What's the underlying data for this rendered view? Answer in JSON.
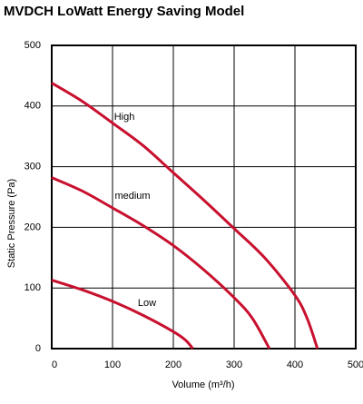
{
  "chart_data": {
    "type": "line",
    "title": "MVDCH LoWatt Energy Saving Model",
    "x_label": "Volume (m³/h)",
    "y_label": "Static Pressure (Pa)",
    "xlim": [
      0,
      500
    ],
    "xticks": [
      0,
      100,
      200,
      300,
      400,
      500
    ],
    "ylim": [
      0,
      500
    ],
    "yticks": [
      0,
      100,
      200,
      300,
      400,
      500
    ],
    "grid": true,
    "series": [
      {
        "name": "High",
        "color": "#c8102e",
        "x": [
          0,
          50,
          100,
          150,
          200,
          250,
          300,
          350,
          400,
          420,
          437
        ],
        "values": [
          438,
          408,
          372,
          335,
          290,
          245,
          198,
          150,
          88,
          50,
          0
        ]
      },
      {
        "name": "medium",
        "color": "#c8102e",
        "x": [
          0,
          50,
          100,
          150,
          200,
          250,
          300,
          330,
          358
        ],
        "values": [
          282,
          260,
          232,
          203,
          170,
          130,
          84,
          50,
          0
        ]
      },
      {
        "name": "Low",
        "color": "#c8102e",
        "x": [
          0,
          50,
          100,
          150,
          200,
          220,
          232
        ],
        "values": [
          113,
          97,
          78,
          55,
          28,
          14,
          0
        ]
      }
    ]
  }
}
